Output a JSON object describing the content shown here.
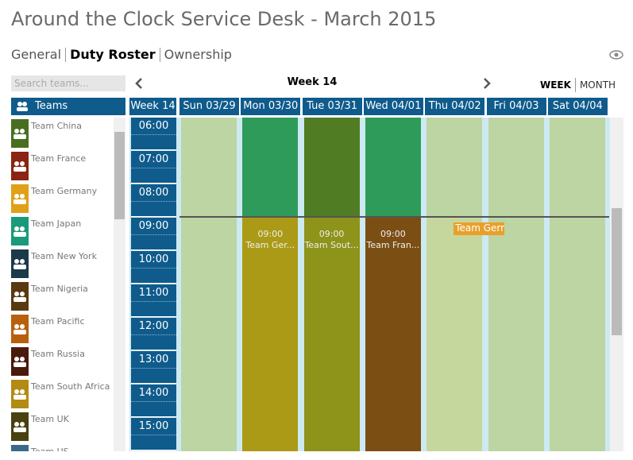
{
  "header": {
    "title": "Around the Clock Service Desk - March 2015",
    "tabs": [
      "General",
      "Duty Roster",
      "Ownership"
    ],
    "active_tab": 1
  },
  "sidebar": {
    "search_placeholder": "Search teams...",
    "heading": "Teams",
    "teams": [
      {
        "name": "Team China",
        "color": "#4a6e1f"
      },
      {
        "name": "Team France",
        "color": "#8b2410"
      },
      {
        "name": "Team Germany",
        "color": "#e0a018"
      },
      {
        "name": "Team Japan",
        "color": "#1a9a7a"
      },
      {
        "name": "Team New York",
        "color": "#1b3a4a"
      },
      {
        "name": "Team Nigeria",
        "color": "#5a3810"
      },
      {
        "name": "Team Pacific",
        "color": "#b8600c"
      },
      {
        "name": "Team Russia",
        "color": "#4a1a0c"
      },
      {
        "name": "Team South Africa",
        "color": "#b38a12"
      },
      {
        "name": "Team UK",
        "color": "#4a4010"
      },
      {
        "name": "Team US",
        "color": "#3a6a8a"
      }
    ]
  },
  "calendar": {
    "week_label": "Week 14",
    "views": [
      "WEEK",
      "MONTH"
    ],
    "active_view": 0,
    "corner": "Week 14",
    "days": [
      "Sun 03/29",
      "Mon 03/30",
      "Tue 03/31",
      "Wed 04/01",
      "Thu 04/02",
      "Fri 04/03",
      "Sat 04/04"
    ],
    "hours": [
      "06:00",
      "07:00",
      "08:00",
      "09:00",
      "10:00",
      "11:00",
      "12:00",
      "13:00",
      "14:00",
      "15:00"
    ],
    "columns": [
      {
        "top": "#bcd5a3",
        "bottom": "#bcd5a3"
      },
      {
        "top": "#2f9b5a",
        "bottom": "#ab9a16"
      },
      {
        "top": "#507d24",
        "bottom": "#8e931a"
      },
      {
        "top": "#2f9b5a",
        "bottom": "#7b4f14"
      },
      {
        "top": "#bcd5a3",
        "bottom": "#c6d79e"
      },
      {
        "top": "#bcd5a3",
        "bottom": "#bcd5a3"
      },
      {
        "top": "#bcd5a3",
        "bottom": "#bcd5a3"
      }
    ],
    "events": [
      {
        "day": 1,
        "time": "09:00",
        "label": "Team Ger..."
      },
      {
        "day": 2,
        "time": "09:00",
        "label": "Team Sout..."
      },
      {
        "day": 3,
        "time": "09:00",
        "label": "Team Fran..."
      }
    ],
    "drag_label": {
      "day": 4,
      "text": "Team Germ",
      "color": "#e8a02a"
    }
  }
}
